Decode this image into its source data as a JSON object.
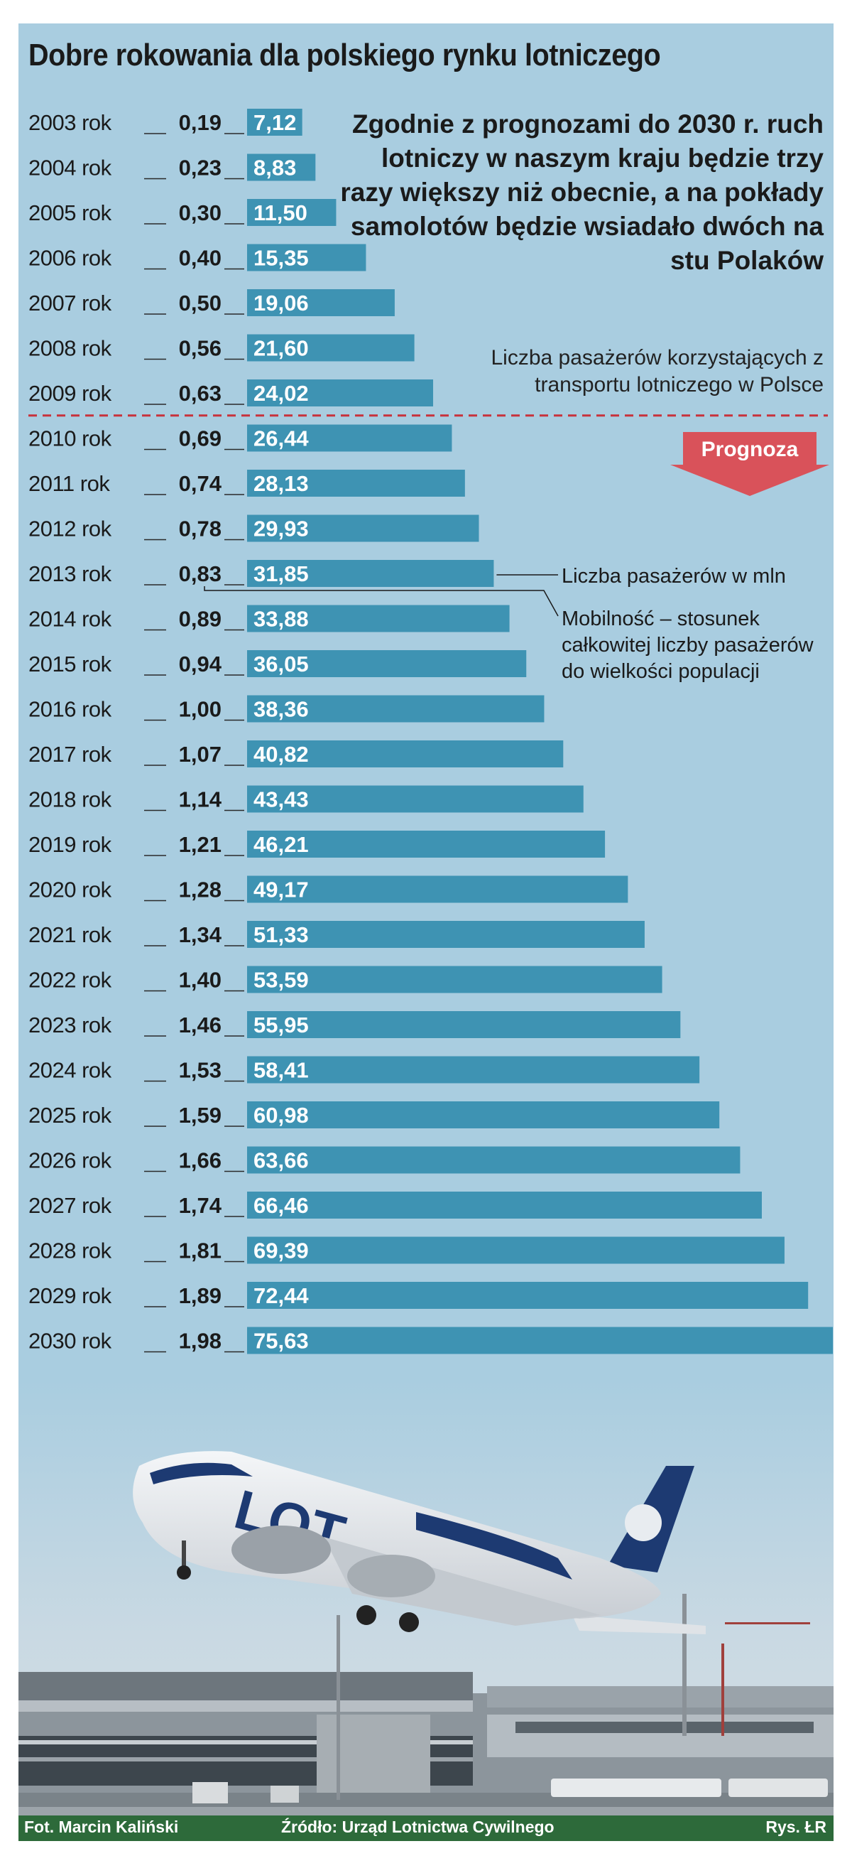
{
  "title": "Dobre rokowania dla polskiego rynku lotniczego",
  "headline": "Zgodnie z prognozami do 2030 r. ruch lotniczy w naszym kraju będzie trzy razy większy niż obecnie, a na pokłady samolotów będzie wsiadało dwóch na stu Polaków",
  "subtitle": "Liczba pasażerów korzystających z transportu lotniczego w Polsce",
  "forecast_label": "Prognoza",
  "annotations": {
    "passengers": "Liczba pasażerów w mln",
    "mobility": "Mobilność – stosunek całkowitej liczby pasażerów do wielkości populacji"
  },
  "credits": {
    "photo": "Fot. Marcin Kaliński",
    "source": "Źródło: Urząd Lotnictwa Cywilnego",
    "drawing": "Rys. ŁR"
  },
  "colors": {
    "background": "#a9cde0",
    "bar": "#3e93b3",
    "forecast_divider": "#c8323c",
    "forecast_arrow": "#d9525a"
  },
  "chart_data": {
    "type": "bar",
    "orientation": "horizontal",
    "title": "Liczba pasażerów korzystających z transportu lotniczego w Polsce",
    "categories": [
      "2003 rok",
      "2004 rok",
      "2005 rok",
      "2006 rok",
      "2007 rok",
      "2008 rok",
      "2009 rok",
      "2010 rok",
      "2011 rok",
      "2012 rok",
      "2013 rok",
      "2014 rok",
      "2015 rok",
      "2016 rok",
      "2017 rok",
      "2018 rok",
      "2019 rok",
      "2020 rok",
      "2021 rok",
      "2022 rok",
      "2023 rok",
      "2024 rok",
      "2025 rok",
      "2026 rok",
      "2027 rok",
      "2028 rok",
      "2029 rok",
      "2030 rok"
    ],
    "series": [
      {
        "name": "Liczba pasażerów w mln",
        "values": [
          7.12,
          8.83,
          11.5,
          15.35,
          19.06,
          21.6,
          24.02,
          26.44,
          28.13,
          29.93,
          31.85,
          33.88,
          36.05,
          38.36,
          40.82,
          43.43,
          46.21,
          49.17,
          51.33,
          53.59,
          55.95,
          58.41,
          60.98,
          63.66,
          66.46,
          69.39,
          72.44,
          75.63
        ],
        "labels": [
          "7,12",
          "8,83",
          "11,50",
          "15,35",
          "19,06",
          "21,60",
          "24,02",
          "26,44",
          "28,13",
          "29,93",
          "31,85",
          "33,88",
          "36,05",
          "38,36",
          "40,82",
          "43,43",
          "46,21",
          "49,17",
          "51,33",
          "53,59",
          "55,95",
          "58,41",
          "60,98",
          "63,66",
          "66,46",
          "69,39",
          "72,44",
          "75,63"
        ]
      },
      {
        "name": "Mobilność",
        "values": [
          0.19,
          0.23,
          0.3,
          0.4,
          0.5,
          0.56,
          0.63,
          0.69,
          0.74,
          0.78,
          0.83,
          0.89,
          0.94,
          1.0,
          1.07,
          1.14,
          1.21,
          1.28,
          1.34,
          1.4,
          1.46,
          1.53,
          1.59,
          1.66,
          1.74,
          1.81,
          1.89,
          1.98
        ],
        "labels": [
          "0,19",
          "0,23",
          "0,30",
          "0,40",
          "0,50",
          "0,56",
          "0,63",
          "0,69",
          "0,74",
          "0,78",
          "0,83",
          "0,89",
          "0,94",
          "1,00",
          "1,07",
          "1,14",
          "1,21",
          "1,28",
          "1,34",
          "1,40",
          "1,46",
          "1,53",
          "1,59",
          "1,66",
          "1,74",
          "1,81",
          "1,89",
          "1,98"
        ]
      }
    ],
    "forecast_start": "2010 rok",
    "xlim": [
      0,
      75.63
    ],
    "xlabel": "",
    "ylabel": ""
  }
}
